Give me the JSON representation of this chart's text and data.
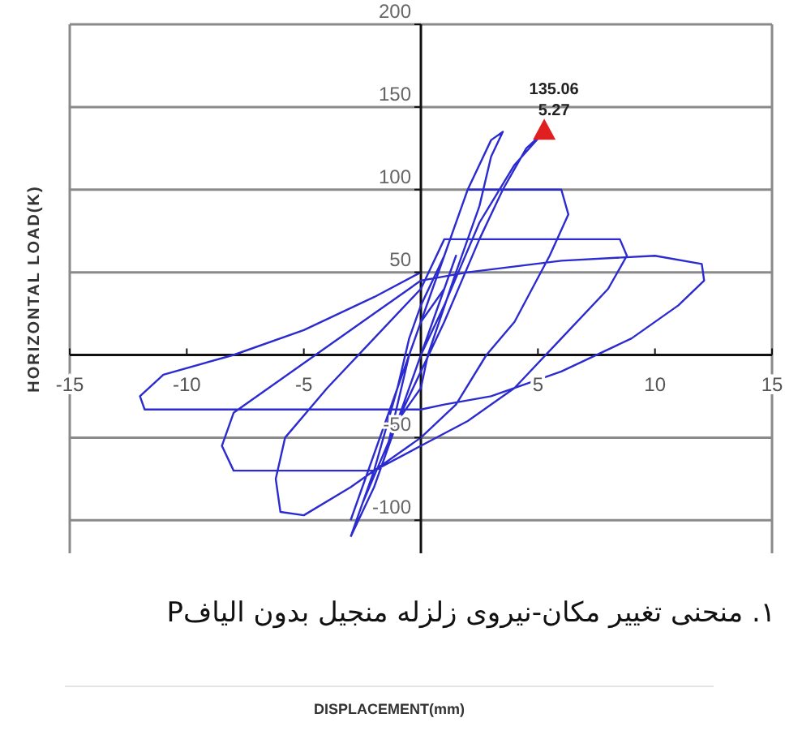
{
  "chart_data": {
    "type": "line",
    "ylabel": "HORIZONTAL LOAD(K)",
    "annotations": [
      {
        "text": "135.06",
        "x": 5.27,
        "y": 135.06
      },
      {
        "text": "5.27",
        "x": 5.27,
        "y": 135.06
      },
      "۱. منحنی تغییر مکان-نیروی زلزله منجیل بدون الیافP",
      "DISPLACEMENT(mm)"
    ],
    "xlim": [
      -15,
      15
    ],
    "ylim": [
      -120,
      200
    ],
    "xticks": [
      -15,
      -10,
      -5,
      5,
      10,
      15
    ],
    "yticks": [
      -100,
      -50,
      {
        "value": 0,
        "label": null
      },
      50,
      100,
      150,
      200
    ],
    "grid": "y",
    "series": [
      {
        "color": "#2b2bd0",
        "marker": "none",
        "x": [
          0,
          1,
          1.5,
          1,
          0,
          -0.5,
          -1,
          -1.5,
          -1,
          0,
          0.3,
          1.5,
          2.5,
          3,
          3.5,
          3,
          2,
          1,
          0,
          -0.5,
          -1,
          -2,
          -3,
          null,
          -3,
          -2,
          -1,
          0,
          1,
          2.5,
          4,
          5.27,
          4.5,
          3.5,
          2.5,
          1,
          0,
          -1,
          -2.5,
          null,
          -3,
          -2,
          -1,
          0,
          1,
          2,
          4,
          6,
          6.3,
          5.5,
          4,
          2.8,
          1.5,
          0,
          -1,
          -3,
          -5,
          -6,
          -6.2,
          -5.8,
          -4,
          -2,
          0,
          1,
          8.5,
          8.8,
          8,
          6,
          4,
          2,
          0,
          -2,
          -8,
          -8.5,
          -8,
          -6,
          -4,
          -2,
          0,
          2,
          6,
          10,
          12,
          12.1,
          11,
          9,
          6,
          3,
          1,
          0,
          -4,
          -11.8,
          -12,
          -11,
          -8,
          -5,
          -2,
          0
        ],
        "values": [
          0,
          40,
          60,
          40,
          20,
          0,
          -30,
          -60,
          -40,
          -20,
          0,
          50,
          90,
          120,
          135,
          130,
          100,
          60,
          30,
          10,
          -20,
          -70,
          -110,
          null,
          -110,
          -80,
          -40,
          0,
          30,
          80,
          115,
          135.06,
          125,
          100,
          70,
          20,
          -10,
          -40,
          -90,
          null,
          -100,
          -60,
          -20,
          20,
          60,
          100,
          100,
          100,
          85,
          60,
          20,
          0,
          -30,
          -50,
          -60,
          -80,
          -97,
          -95,
          -75,
          -50,
          -20,
          10,
          40,
          70,
          70,
          60,
          40,
          10,
          -20,
          -40,
          -55,
          -70,
          -70,
          -55,
          -35,
          -15,
          5,
          25,
          45,
          50,
          57,
          60,
          55,
          45,
          30,
          10,
          -10,
          -25,
          -30,
          -33,
          -33,
          -33,
          -25,
          -12,
          0,
          15,
          35,
          50
        ]
      },
      {
        "type": "scatter",
        "color": "#e02020",
        "marker": "triangle",
        "x": [
          5.27
        ],
        "values": [
          135.06
        ]
      }
    ]
  }
}
